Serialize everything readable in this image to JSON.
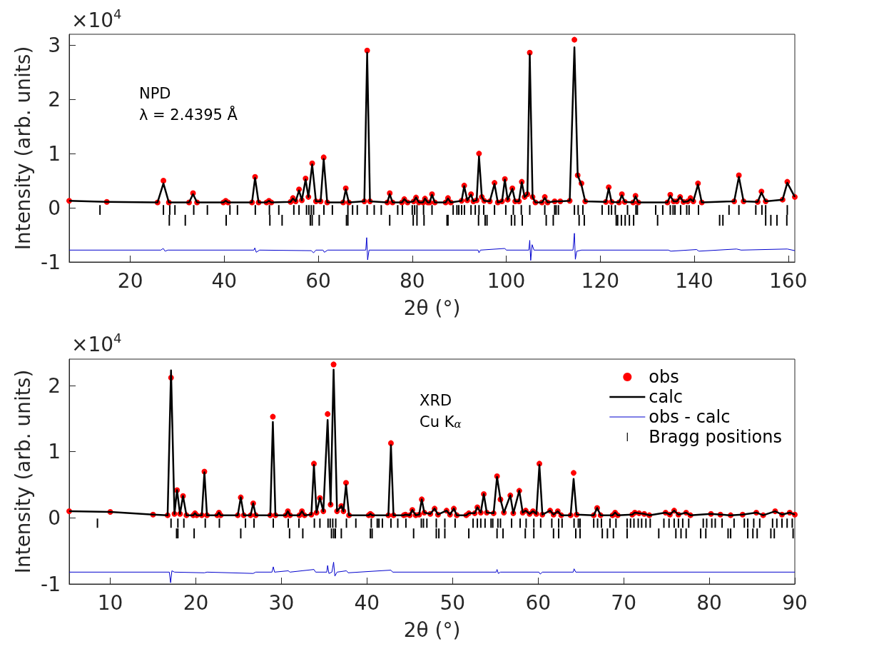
{
  "chart_data": [
    {
      "type": "line",
      "xlabel": "2θ (°)",
      "ylabel": "Intensity (arb. units)",
      "annotations": [
        "×10$^{4}$",
        "NPD",
        "λ = 2.4395 Å"
      ],
      "xlim": [
        7,
        161.4
      ],
      "ylim": [
        -1,
        3.2
      ],
      "xticks": [
        20,
        40,
        60,
        80,
        100,
        120,
        140,
        160
      ],
      "yticks": [
        -1,
        0,
        1,
        2,
        3
      ],
      "x": [
        7,
        15,
        25.8,
        27.05,
        28.2,
        32.5,
        33.35,
        34.2,
        39.8,
        40.3,
        40.8,
        45.9,
        46.55,
        47.3,
        49,
        49.5,
        50,
        54.1,
        54.6,
        55.2,
        55.9,
        56.5,
        57.3,
        57.9,
        58.7,
        59.5,
        60.5,
        61.15,
        61.9,
        65.3,
        65.85,
        66.5,
        69.8,
        70.4,
        71,
        74.7,
        75.2,
        75.8,
        77.8,
        78.3,
        79,
        80.3,
        80.8,
        81.4,
        82.3,
        82.7,
        83.3,
        83.7,
        84.2,
        84.8,
        87.1,
        87.6,
        88.2,
        90.5,
        91.05,
        91.7,
        92.5,
        93,
        93.7,
        94.2,
        94.8,
        95.3,
        96.5,
        97.5,
        98.2,
        99.1,
        99.7,
        100.3,
        101.3,
        101.9,
        102.7,
        103.3,
        103.9,
        104.5,
        105,
        105.6,
        106.2,
        107.6,
        108.2,
        108.8,
        110.3,
        111.5,
        113.5,
        114.5,
        115.2,
        116,
        116.8,
        121.2,
        121.8,
        122.4,
        124,
        124.6,
        125.2,
        127,
        127.5,
        128.1,
        134.3,
        134.9,
        135.6,
        136.3,
        137,
        137.7,
        138.6,
        139.2,
        139.8,
        140.8,
        141.6,
        148.5,
        149.5,
        150.5,
        153.5,
        154.3,
        155.2,
        158.8,
        159.8,
        161.4
      ],
      "series": [
        {
          "type": "scatter",
          "marker": "circle",
          "color": "#ff0000",
          "values": [
            0.13,
            0.11,
            0.1,
            0.5,
            0.1,
            0.1,
            0.27,
            0.1,
            0.1,
            0.13,
            0.1,
            0.1,
            0.57,
            0.1,
            0.1,
            0.13,
            0.1,
            0.11,
            0.18,
            0.12,
            0.34,
            0.14,
            0.54,
            0.2,
            0.82,
            0.12,
            0.12,
            0.93,
            0.1,
            0.1,
            0.36,
            0.1,
            0.12,
            2.9,
            0.12,
            0.1,
            0.27,
            0.1,
            0.1,
            0.16,
            0.1,
            0.12,
            0.19,
            0.1,
            0.1,
            0.17,
            0.1,
            0.1,
            0.25,
            0.1,
            0.1,
            0.18,
            0.1,
            0.13,
            0.41,
            0.14,
            0.25,
            0.12,
            0.14,
            1.0,
            0.2,
            0.13,
            0.12,
            0.46,
            0.1,
            0.12,
            0.53,
            0.15,
            0.36,
            0.12,
            0.12,
            0.48,
            0.2,
            0.25,
            2.86,
            0.2,
            0.1,
            0.1,
            0.2,
            0.1,
            0.12,
            0.12,
            0.13,
            3.1,
            0.6,
            0.45,
            0.12,
            0.11,
            0.38,
            0.11,
            0.1,
            0.25,
            0.11,
            0.1,
            0.22,
            0.1,
            0.1,
            0.24,
            0.12,
            0.12,
            0.2,
            0.11,
            0.12,
            0.18,
            0.12,
            0.45,
            0.1,
            0.12,
            0.6,
            0.12,
            0.11,
            0.3,
            0.12,
            0.15,
            0.48,
            0.2
          ]
        },
        {
          "color": "#000000",
          "values": [
            0.13,
            0.11,
            0.1,
            0.45,
            0.1,
            0.1,
            0.25,
            0.1,
            0.1,
            0.13,
            0.1,
            0.1,
            0.55,
            0.1,
            0.1,
            0.13,
            0.1,
            0.11,
            0.17,
            0.12,
            0.32,
            0.14,
            0.52,
            0.2,
            0.8,
            0.12,
            0.12,
            0.9,
            0.1,
            0.1,
            0.34,
            0.1,
            0.12,
            2.86,
            0.12,
            0.1,
            0.25,
            0.1,
            0.1,
            0.16,
            0.1,
            0.12,
            0.19,
            0.1,
            0.1,
            0.17,
            0.1,
            0.1,
            0.24,
            0.1,
            0.1,
            0.17,
            0.1,
            0.13,
            0.4,
            0.14,
            0.24,
            0.12,
            0.14,
            0.95,
            0.2,
            0.13,
            0.12,
            0.44,
            0.1,
            0.12,
            0.52,
            0.15,
            0.35,
            0.12,
            0.12,
            0.47,
            0.2,
            0.25,
            2.83,
            0.2,
            0.1,
            0.1,
            0.18,
            0.1,
            0.12,
            0.12,
            0.13,
            2.96,
            0.6,
            0.42,
            0.12,
            0.11,
            0.36,
            0.11,
            0.1,
            0.23,
            0.11,
            0.1,
            0.21,
            0.1,
            0.1,
            0.22,
            0.12,
            0.12,
            0.2,
            0.11,
            0.12,
            0.16,
            0.12,
            0.43,
            0.1,
            0.12,
            0.57,
            0.12,
            0.11,
            0.28,
            0.12,
            0.15,
            0.46,
            0.2
          ]
        },
        {
          "color": "#0000cd",
          "x": [
            7,
            26.5,
            27,
            27.4,
            28,
            46.3,
            46.5,
            46.8,
            47.5,
            58.5,
            59,
            59.5,
            61,
            61.3,
            62,
            70.1,
            70.3,
            70.5,
            70.8,
            94,
            94.2,
            94.5,
            99.7,
            100,
            104.8,
            105,
            105.2,
            105.5,
            105.9,
            114.2,
            114.5,
            114.7,
            115,
            116,
            134.5,
            135,
            140.5,
            141,
            149,
            150,
            159.8,
            161.4
          ],
          "values": [
            -0.78,
            -0.78,
            -0.75,
            -0.8,
            -0.78,
            -0.78,
            -0.74,
            -0.82,
            -0.78,
            -0.79,
            -0.83,
            -0.78,
            -0.78,
            -0.82,
            -0.78,
            -0.78,
            -0.55,
            -0.96,
            -0.78,
            -0.78,
            -0.83,
            -0.78,
            -0.75,
            -0.78,
            -0.78,
            -0.6,
            -0.97,
            -0.68,
            -0.78,
            -0.78,
            -0.47,
            -0.95,
            -0.8,
            -0.78,
            -0.78,
            -0.8,
            -0.77,
            -0.8,
            -0.76,
            -0.78,
            -0.76,
            -0.79
          ]
        },
        {
          "type": "bar",
          "color": "#000000",
          "x": [
            13.55,
            27.05,
            28.4,
            29.5,
            33.5,
            36.4,
            41.2,
            42.8,
            46.6,
            49.6,
            51.6,
            54.8,
            55.9,
            57.5,
            58,
            58.5,
            59,
            61.2,
            63,
            66.3,
            67.3,
            68.3,
            70.4,
            71.9,
            73.4,
            76.9,
            77.9,
            80,
            80.5,
            81,
            82.4,
            84.2,
            88.7,
            89.5,
            89.9,
            90.5,
            91.1,
            92.5,
            93.4,
            94.2,
            95.2,
            97.5,
            99.9,
            101.5,
            103.2,
            105,
            108.2,
            110.3,
            110.6,
            111.1,
            114.5,
            115.3,
            116.3,
            120.4,
            121.8,
            122.4,
            123.2,
            125.8,
            127.6,
            127.9,
            131.8,
            133.3,
            134.9,
            135.5,
            135.9,
            137.1,
            138.4,
            138.9,
            140.9,
            147.4,
            149.5,
            153.1,
            154.4,
            155.2,
            159.8
          ],
          "base": [
            -0.13,
            -0.13,
            -0.13,
            -0.13,
            -0.13,
            -0.13,
            -0.13,
            -0.13,
            -0.13,
            -0.13,
            -0.13,
            -0.13,
            -0.13,
            -0.13,
            -0.13,
            -0.13,
            -0.13,
            -0.13,
            -0.13,
            -0.13,
            -0.13,
            -0.13,
            -0.13,
            -0.13,
            -0.13,
            -0.13,
            -0.13,
            -0.13,
            -0.13,
            -0.13,
            -0.13,
            -0.13,
            -0.13,
            -0.13,
            -0.13,
            -0.13,
            -0.13,
            -0.13,
            -0.13,
            -0.13,
            -0.13,
            -0.13,
            -0.13,
            -0.13,
            -0.13,
            -0.13,
            -0.13,
            -0.13,
            -0.13,
            -0.13,
            -0.13,
            -0.13,
            -0.13,
            -0.13,
            -0.13,
            -0.13,
            -0.13,
            -0.13,
            -0.13,
            -0.13,
            -0.13,
            -0.13,
            -0.13,
            -0.13,
            -0.13,
            -0.13,
            -0.13,
            -0.13,
            -0.13,
            -0.13,
            -0.13,
            -0.13,
            -0.13,
            -0.13,
            -0.13
          ],
          "values": [
            0.18,
            0.18,
            0.18,
            0.18,
            0.18,
            0.18,
            0.18,
            0.18,
            0.18,
            0.18,
            0.18,
            0.18,
            0.18,
            0.18,
            0.18,
            0.18,
            0.18,
            0.18,
            0.18,
            0.18,
            0.18,
            0.18,
            0.18,
            0.18,
            0.18,
            0.18,
            0.18,
            0.18,
            0.18,
            0.18,
            0.18,
            0.18,
            0.18,
            0.18,
            0.18,
            0.18,
            0.18,
            0.18,
            0.18,
            0.18,
            0.18,
            0.18,
            0.18,
            0.18,
            0.18,
            0.18,
            0.18,
            0.18,
            0.18,
            0.18,
            0.18,
            0.18,
            0.18,
            0.18,
            0.18,
            0.18,
            0.18,
            0.18,
            0.18,
            0.18,
            0.18,
            0.18,
            0.18,
            0.18,
            0.18,
            0.18,
            0.18,
            0.18,
            0.18,
            0.18,
            0.18,
            0.18,
            0.18,
            0.18,
            0.18
          ]
        },
        {
          "type": "bar",
          "color": "#000000",
          "x": [
            28.3,
            31.7,
            40.4,
            49.7,
            52.3,
            58.3,
            58.7,
            60.2,
            66,
            66.3,
            75.2,
            80.2,
            81,
            82.5,
            87.4,
            87.6,
            94.1,
            95.5,
            95.9,
            101.1,
            101.8,
            103.4,
            108.5,
            110,
            115.5,
            116.6,
            123.4,
            123.7,
            124.5,
            125.3,
            126.2,
            127.1,
            132.2,
            145.4,
            146.1,
            155.2,
            156.3,
            157.6,
            159.7
          ],
          "base": [
            -0.33,
            -0.33,
            -0.33,
            -0.33,
            -0.33,
            -0.33,
            -0.33,
            -0.33,
            -0.33,
            -0.33,
            -0.33,
            -0.33,
            -0.33,
            -0.33,
            -0.33,
            -0.33,
            -0.33,
            -0.33,
            -0.33,
            -0.33,
            -0.33,
            -0.33,
            -0.33,
            -0.33,
            -0.33,
            -0.33,
            -0.33,
            -0.33,
            -0.33,
            -0.33,
            -0.33,
            -0.33,
            -0.33,
            -0.33,
            -0.33,
            -0.33,
            -0.33,
            -0.33,
            -0.33
          ],
          "values": [
            0.2,
            0.2,
            0.2,
            0.2,
            0.2,
            0.2,
            0.2,
            0.2,
            0.2,
            0.2,
            0.2,
            0.2,
            0.2,
            0.2,
            0.2,
            0.2,
            0.2,
            0.2,
            0.2,
            0.2,
            0.2,
            0.2,
            0.2,
            0.2,
            0.2,
            0.2,
            0.2,
            0.2,
            0.2,
            0.2,
            0.2,
            0.2,
            0.2,
            0.2,
            0.2,
            0.2,
            0.2,
            0.2,
            0.2
          ]
        }
      ]
    },
    {
      "type": "line",
      "xlabel": "2θ (°)",
      "ylabel": "Intensity (arb. units)",
      "annotations": [
        "×10$^{4}$",
        "XRD",
        "Cu K$_{α}$"
      ],
      "xlim": [
        5.2,
        90
      ],
      "ylim": [
        -1,
        2.4
      ],
      "xticks": [
        10,
        20,
        30,
        40,
        50,
        60,
        70,
        80,
        90
      ],
      "yticks": [
        -1,
        0,
        1,
        2
      ],
      "legend": "top right",
      "x": [
        5.2,
        10,
        15,
        16.7,
        17.1,
        17.5,
        17.8,
        18.15,
        18.5,
        18.9,
        19.7,
        19.9,
        20.1,
        20.7,
        21,
        21.3,
        22.5,
        22.7,
        22.9,
        24.9,
        25.25,
        25.6,
        26.4,
        26.7,
        27,
        28.7,
        29,
        29.3,
        30.5,
        30.75,
        31,
        32.1,
        32.4,
        32.7,
        33.5,
        33.8,
        34.1,
        34.5,
        34.9,
        35.4,
        35.75,
        36.1,
        36.5,
        37,
        37.25,
        37.55,
        37.9,
        40.2,
        40.4,
        40.6,
        42.5,
        42.8,
        43.1,
        44.3,
        44.5,
        45,
        45.3,
        45.7,
        46.1,
        46.4,
        46.7,
        47.4,
        47.9,
        48.3,
        49.3,
        49.7,
        50.15,
        50.5,
        51.6,
        51.9,
        52.6,
        52.9,
        53.3,
        53.65,
        54,
        54.8,
        55.2,
        55.6,
        56,
        56.75,
        57.1,
        57.8,
        58.2,
        58.55,
        59,
        59.4,
        59.8,
        60.15,
        60.5,
        61.4,
        61.8,
        62.3,
        62.7,
        63.8,
        64.15,
        64.5,
        66.5,
        66.9,
        67.3,
        68.7,
        69,
        69.3,
        71,
        71.3,
        71.8,
        72.4,
        73,
        74.9,
        75.4,
        75.9,
        76.4,
        77.3,
        77.8,
        80.2,
        81.3,
        82.5,
        83.9,
        85.5,
        86.3,
        87.7,
        88.5,
        89.4,
        90
      ],
      "series": [
        {
          "type": "scatter",
          "name": "obs",
          "marker": "circle",
          "color": "#ff0000",
          "values": [
            0.1,
            0.09,
            0.05,
            0.04,
            2.12,
            0.06,
            0.42,
            0.06,
            0.33,
            0.04,
            0.04,
            0.07,
            0.04,
            0.04,
            0.7,
            0.04,
            0.04,
            0.08,
            0.04,
            0.04,
            0.31,
            0.04,
            0.04,
            0.22,
            0.04,
            0.04,
            1.53,
            0.04,
            0.04,
            0.1,
            0.04,
            0.04,
            0.1,
            0.04,
            0.05,
            0.82,
            0.08,
            0.3,
            0.1,
            1.57,
            0.2,
            2.32,
            0.1,
            0.18,
            0.1,
            0.53,
            0.04,
            0.04,
            0.06,
            0.04,
            0.04,
            1.13,
            0.04,
            0.04,
            0.05,
            0.04,
            0.12,
            0.04,
            0.05,
            0.28,
            0.08,
            0.06,
            0.14,
            0.05,
            0.11,
            0.05,
            0.14,
            0.04,
            0.04,
            0.07,
            0.07,
            0.16,
            0.08,
            0.36,
            0.08,
            0.07,
            0.63,
            0.28,
            0.08,
            0.34,
            0.07,
            0.41,
            0.08,
            0.11,
            0.06,
            0.1,
            0.06,
            0.82,
            0.05,
            0.11,
            0.05,
            0.1,
            0.04,
            0.04,
            0.68,
            0.05,
            0.04,
            0.15,
            0.04,
            0.04,
            0.08,
            0.04,
            0.05,
            0.08,
            0.07,
            0.06,
            0.04,
            0.08,
            0.05,
            0.11,
            0.05,
            0.08,
            0.04,
            0.06,
            0.05,
            0.04,
            0.05,
            0.08,
            0.04,
            0.1,
            0.05,
            0.08,
            0.05
          ]
        },
        {
          "name": "calc",
          "color": "#000000",
          "values": [
            0.1,
            0.09,
            0.05,
            0.04,
            2.23,
            0.06,
            0.42,
            0.06,
            0.33,
            0.04,
            0.04,
            0.07,
            0.04,
            0.04,
            0.69,
            0.04,
            0.04,
            0.08,
            0.04,
            0.04,
            0.31,
            0.04,
            0.04,
            0.22,
            0.04,
            0.04,
            1.45,
            0.04,
            0.04,
            0.1,
            0.04,
            0.04,
            0.1,
            0.04,
            0.05,
            0.8,
            0.08,
            0.3,
            0.1,
            1.48,
            0.2,
            2.24,
            0.1,
            0.18,
            0.1,
            0.5,
            0.04,
            0.04,
            0.06,
            0.04,
            0.04,
            1.1,
            0.04,
            0.04,
            0.05,
            0.04,
            0.12,
            0.04,
            0.05,
            0.28,
            0.08,
            0.06,
            0.14,
            0.05,
            0.11,
            0.05,
            0.14,
            0.04,
            0.04,
            0.07,
            0.07,
            0.16,
            0.08,
            0.36,
            0.08,
            0.07,
            0.62,
            0.28,
            0.08,
            0.34,
            0.07,
            0.41,
            0.08,
            0.11,
            0.06,
            0.1,
            0.06,
            0.8,
            0.05,
            0.11,
            0.05,
            0.1,
            0.04,
            0.04,
            0.59,
            0.05,
            0.04,
            0.15,
            0.04,
            0.04,
            0.08,
            0.04,
            0.05,
            0.08,
            0.07,
            0.06,
            0.04,
            0.08,
            0.05,
            0.11,
            0.05,
            0.08,
            0.04,
            0.06,
            0.05,
            0.04,
            0.05,
            0.08,
            0.04,
            0.1,
            0.05,
            0.08,
            0.05
          ]
        },
        {
          "name": "obs - calc",
          "color": "#0000cd",
          "x": [
            5.2,
            16.9,
            17.05,
            17.2,
            17.5,
            21,
            21.3,
            26.7,
            27,
            28.9,
            29.05,
            29.2,
            30.8,
            31,
            33.8,
            34,
            35.3,
            35.4,
            35.55,
            35.9,
            36.1,
            36.25,
            36.5,
            37.6,
            37.8,
            42.8,
            43,
            55.1,
            55.2,
            55.35,
            55.6,
            60.1,
            60.25,
            60.5,
            64.1,
            64.2,
            64.4,
            90
          ],
          "values": [
            -0.82,
            -0.82,
            -0.98,
            -0.8,
            -0.82,
            -0.83,
            -0.82,
            -0.84,
            -0.82,
            -0.82,
            -0.74,
            -0.82,
            -0.8,
            -0.82,
            -0.78,
            -0.82,
            -0.82,
            -0.72,
            -0.84,
            -0.82,
            -0.67,
            -0.88,
            -0.82,
            -0.8,
            -0.83,
            -0.79,
            -0.82,
            -0.82,
            -0.78,
            -0.84,
            -0.82,
            -0.82,
            -0.85,
            -0.82,
            -0.82,
            -0.77,
            -0.82,
            -0.82
          ]
        },
        {
          "type": "bar",
          "name": "Bragg positions",
          "color": "#000000",
          "x": [
            8.5,
            17.1,
            17.9,
            18.6,
            21.1,
            22.75,
            25.8,
            26.8,
            29.05,
            30.8,
            32.05,
            33.85,
            34.5,
            35.45,
            35.7,
            36,
            36.35,
            37.6,
            38.7,
            40.5,
            41.2,
            41.4,
            41.8,
            42.8,
            43.6,
            44.55,
            46.35,
            46.6,
            47,
            48.1,
            49.1,
            50.3,
            52.4,
            52.9,
            53.3,
            53.8,
            54.5,
            54.7,
            55.3,
            55.6,
            56.9,
            57.9,
            58.6,
            59.5,
            60.3,
            61.6,
            62.4,
            62.8,
            64.2,
            64.7,
            64.9,
            66.5,
            66.95,
            67.4,
            68.4,
            69.1,
            70.4,
            70.8,
            71.2,
            71.7,
            72.1,
            72.6,
            73.1,
            74.7,
            75.3,
            75.9,
            76.4,
            76.9,
            77.6,
            79.3,
            79.7,
            80.3,
            80.7,
            81.5,
            82.9,
            84.1,
            84.5,
            85.2,
            85.9,
            87.4,
            87.9,
            88.5,
            89.1,
            89.7
          ],
          "base": [
            -0.15,
            -0.15,
            -0.15,
            -0.15,
            -0.15,
            -0.15,
            -0.15,
            -0.15,
            -0.15,
            -0.15,
            -0.15,
            -0.15,
            -0.15,
            -0.15,
            -0.15,
            -0.15,
            -0.15,
            -0.15,
            -0.15,
            -0.15,
            -0.15,
            -0.15,
            -0.15,
            -0.15,
            -0.15,
            -0.15,
            -0.15,
            -0.15,
            -0.15,
            -0.15,
            -0.15,
            -0.15,
            -0.15,
            -0.15,
            -0.15,
            -0.15,
            -0.15,
            -0.15,
            -0.15,
            -0.15,
            -0.15,
            -0.15,
            -0.15,
            -0.15,
            -0.15,
            -0.15,
            -0.15,
            -0.15,
            -0.15,
            -0.15,
            -0.15,
            -0.15,
            -0.15,
            -0.15,
            -0.15,
            -0.15,
            -0.15,
            -0.15,
            -0.15,
            -0.15,
            -0.15,
            -0.15,
            -0.15,
            -0.15,
            -0.15,
            -0.15,
            -0.15,
            -0.15,
            -0.15,
            -0.15,
            -0.15,
            -0.15,
            -0.15,
            -0.15,
            -0.15,
            -0.15,
            -0.15,
            -0.15,
            -0.15,
            -0.15,
            -0.15,
            -0.15,
            -0.15,
            -0.15
          ],
          "values": [
            0.14,
            0.14,
            0.14,
            0.14,
            0.14,
            0.14,
            0.14,
            0.14,
            0.14,
            0.14,
            0.14,
            0.14,
            0.14,
            0.14,
            0.14,
            0.14,
            0.14,
            0.14,
            0.14,
            0.14,
            0.14,
            0.14,
            0.14,
            0.14,
            0.14,
            0.14,
            0.14,
            0.14,
            0.14,
            0.14,
            0.14,
            0.14,
            0.14,
            0.14,
            0.14,
            0.14,
            0.14,
            0.14,
            0.14,
            0.14,
            0.14,
            0.14,
            0.14,
            0.14,
            0.14,
            0.14,
            0.14,
            0.14,
            0.14,
            0.14,
            0.14,
            0.14,
            0.14,
            0.14,
            0.14,
            0.14,
            0.14,
            0.14,
            0.14,
            0.14,
            0.14,
            0.14,
            0.14,
            0.14,
            0.14,
            0.14,
            0.14,
            0.14,
            0.14,
            0.14,
            0.14,
            0.14,
            0.14,
            0.14,
            0.14,
            0.14,
            0.14,
            0.14,
            0.14,
            0.14,
            0.14,
            0.14,
            0.14,
            0.14
          ]
        },
        {
          "type": "bar",
          "color": "#000000",
          "x": [
            17.75,
            17.9,
            19.8,
            25.25,
            30.95,
            32.5,
            35.85,
            36.1,
            36.3,
            37,
            40.4,
            40.6,
            45.45,
            48.1,
            48.4,
            49.1,
            51.9,
            55.2,
            55.9,
            58.5,
            59.5,
            61.8,
            62.4,
            64.4,
            64.9,
            67.5,
            68.1,
            68.8,
            70.4,
            74.1,
            76.1,
            76.7,
            77.3,
            79,
            79.6,
            82.2,
            82.5,
            84.5,
            85.1,
            85.6,
            87.2,
            87.6,
            89.8
          ],
          "base": [
            -0.31,
            -0.31,
            -0.31,
            -0.31,
            -0.31,
            -0.31,
            -0.31,
            -0.31,
            -0.31,
            -0.31,
            -0.31,
            -0.31,
            -0.31,
            -0.31,
            -0.31,
            -0.31,
            -0.31,
            -0.31,
            -0.31,
            -0.31,
            -0.31,
            -0.31,
            -0.31,
            -0.31,
            -0.31,
            -0.31,
            -0.31,
            -0.31,
            -0.31,
            -0.31,
            -0.31,
            -0.31,
            -0.31,
            -0.31,
            -0.31,
            -0.31,
            -0.31,
            -0.31,
            -0.31,
            -0.31,
            -0.31,
            -0.31,
            -0.31
          ],
          "values": [
            0.15,
            0.15,
            0.15,
            0.15,
            0.15,
            0.15,
            0.15,
            0.15,
            0.15,
            0.15,
            0.15,
            0.15,
            0.15,
            0.15,
            0.15,
            0.15,
            0.15,
            0.15,
            0.15,
            0.15,
            0.15,
            0.15,
            0.15,
            0.15,
            0.15,
            0.15,
            0.15,
            0.15,
            0.15,
            0.15,
            0.15,
            0.15,
            0.15,
            0.15,
            0.15,
            0.15,
            0.15,
            0.15,
            0.15,
            0.15,
            0.15,
            0.15,
            0.15
          ]
        }
      ]
    }
  ]
}
